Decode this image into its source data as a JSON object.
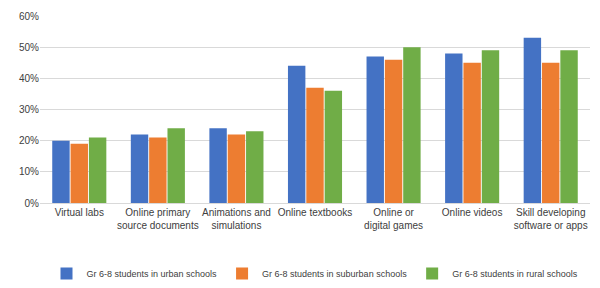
{
  "chart_data": {
    "type": "bar",
    "categories": [
      "Virtual labs",
      "Online primary source documents",
      "Animations and simulations",
      "Online textbooks",
      "Online or digital games",
      "Online videos",
      "Skill developing software or apps"
    ],
    "series": [
      {
        "name": "Gr 6-8 students in urban schools",
        "color": "#4472c4",
        "values": [
          20,
          22,
          24,
          44,
          47,
          48,
          53
        ]
      },
      {
        "name": "Gr 6-8 students in suburban schools",
        "color": "#ed7d31",
        "values": [
          19,
          21,
          22,
          37,
          46,
          45,
          45
        ]
      },
      {
        "name": "Gr 6-8 students in rural schools",
        "color": "#70ad47",
        "values": [
          21,
          24,
          23,
          36,
          50,
          49,
          49
        ]
      }
    ],
    "ylim": [
      0,
      60
    ],
    "yticks": [
      {
        "value": 0,
        "label": "0%"
      },
      {
        "value": 10,
        "label": "10%"
      },
      {
        "value": 20,
        "label": "20%"
      },
      {
        "value": 30,
        "label": "30%"
      },
      {
        "value": 40,
        "label": "40%"
      },
      {
        "value": 50,
        "label": "50%"
      },
      {
        "value": 60,
        "label": "60%"
      }
    ],
    "grid": true,
    "legend": "bottom"
  }
}
